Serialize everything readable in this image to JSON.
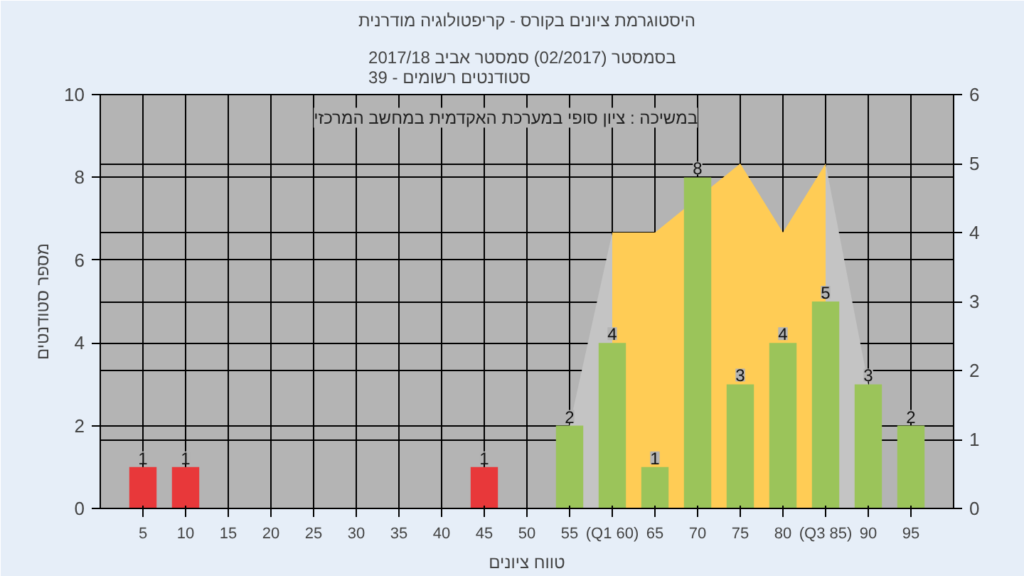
{
  "chart_data": {
    "type": "bar",
    "title": "היסטוגרמת ציונים בקורס - קריפטולוגיה מודרנית",
    "subtitle": "בסמסטר  (02/2017)  סמסטר אביב 2017/18\nסטודנטים רשומים - 39",
    "xlabel": "טווח ציונים",
    "ylabel": "מספר סטודנטים",
    "annotations": [
      "במשיכה : ציון סופי במערכת האקדמית במחשב המרכזי"
    ],
    "series": [
      {
        "type": "area",
        "axis": "y2",
        "color": "#c4c4c4",
        "x": [
          55,
          60
        ],
        "values": [
          1.2,
          4
        ]
      },
      {
        "type": "area",
        "axis": "y2",
        "color": "#c4c4c4",
        "x": [
          85,
          90
        ],
        "values": [
          5,
          1.8
        ]
      },
      {
        "type": "area",
        "axis": "y2",
        "color": "#ffcc55",
        "x": [
          60,
          65,
          75,
          80,
          85
        ],
        "values": [
          4,
          4,
          5,
          4,
          5
        ]
      },
      {
        "color": "#e8383a",
        "x": [
          5,
          10,
          45
        ],
        "values": [
          1,
          1,
          1
        ],
        "value_labels": [
          "1",
          "1",
          "1"
        ]
      },
      {
        "color": "#9bc45a",
        "x": [
          55,
          60,
          65,
          70,
          75,
          80,
          85,
          90,
          95
        ],
        "values": [
          2,
          4,
          1,
          8,
          3,
          4,
          5,
          3,
          2
        ],
        "value_labels": [
          "2",
          "4",
          "1",
          "8",
          "3",
          "4",
          "5",
          "3",
          "2"
        ]
      }
    ],
    "xlim": [
      0,
      100
    ],
    "xticks": [
      5,
      10,
      15,
      20,
      25,
      30,
      35,
      40,
      45,
      50,
      55,
      {
        "value": 60,
        "label": "(Q1 60)"
      },
      65,
      70,
      75,
      80,
      {
        "value": 85,
        "label": "(Q3 85)"
      },
      90,
      95
    ],
    "ylim": [
      0,
      10
    ],
    "yticks": [
      0,
      2,
      4,
      6,
      8,
      10
    ],
    "y2lim": [
      0,
      6
    ],
    "y2ticks": [
      0,
      1,
      2,
      3,
      4,
      5,
      6
    ],
    "grid": true
  }
}
